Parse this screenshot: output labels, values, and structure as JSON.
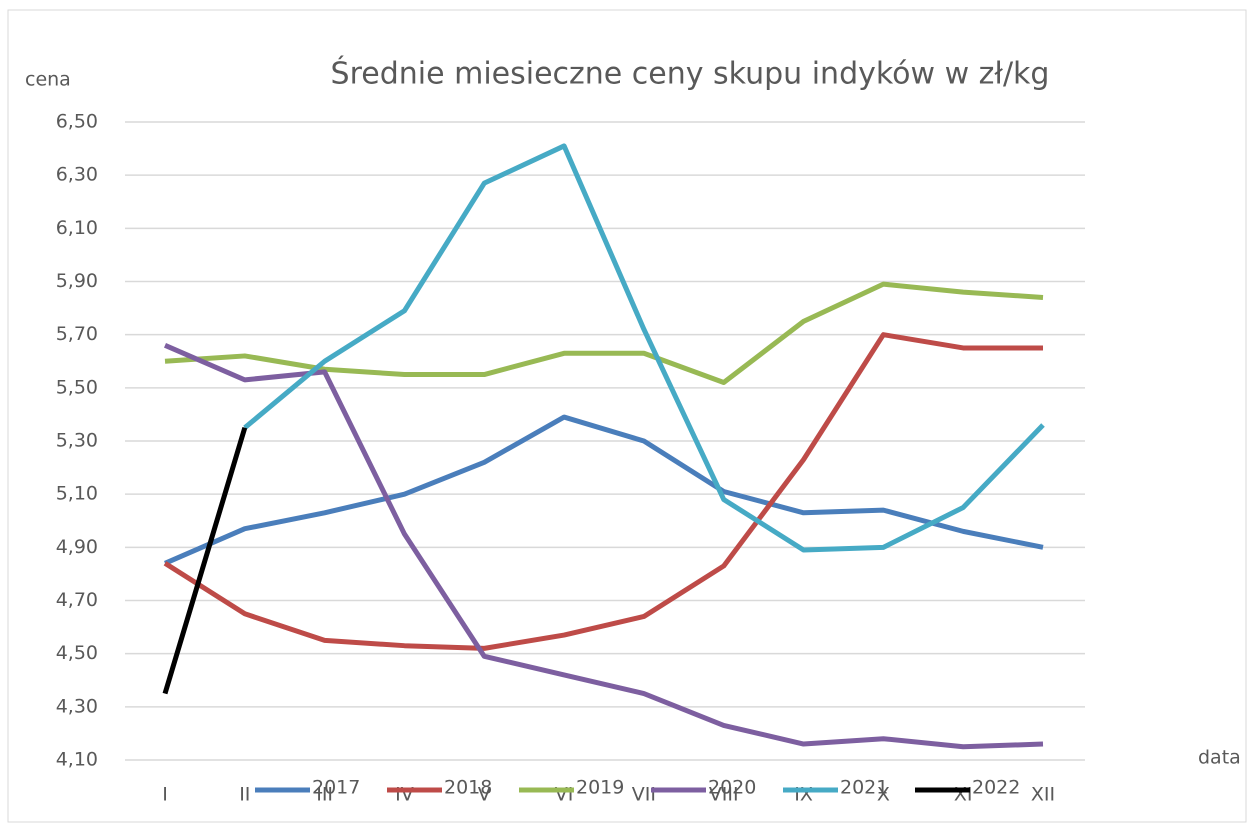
{
  "chart_data": {
    "type": "line",
    "title": "Średnie miesieczne ceny skupu indyków w zł/kg",
    "y_label": "cena",
    "x_label": "data",
    "categories": [
      "I",
      "II",
      "III",
      "IV",
      "V",
      "VI",
      "VII",
      "VIII",
      "IX",
      "X",
      "XI",
      "XII"
    ],
    "series": [
      {
        "name": "2017",
        "color": "#4a7ebb",
        "values": [
          4.84,
          4.97,
          5.03,
          5.1,
          5.22,
          5.39,
          5.3,
          5.11,
          5.03,
          5.04,
          4.96,
          4.9
        ]
      },
      {
        "name": "2018",
        "color": "#be4b48",
        "values": [
          4.84,
          4.65,
          4.55,
          4.53,
          4.52,
          4.57,
          4.64,
          4.83,
          5.23,
          5.7,
          5.65,
          5.65
        ]
      },
      {
        "name": "2019",
        "color": "#98b954",
        "values": [
          5.6,
          5.62,
          5.57,
          5.55,
          5.55,
          5.63,
          5.63,
          5.52,
          5.75,
          5.89,
          5.86,
          5.84
        ]
      },
      {
        "name": "2020",
        "color": "#7d5fa0",
        "values": [
          5.66,
          5.53,
          5.56,
          4.95,
          4.49,
          4.42,
          4.35,
          4.23,
          4.16,
          4.18,
          4.15,
          4.16
        ]
      },
      {
        "name": "2021",
        "color": "#46aac5",
        "values": [
          null,
          5.35,
          5.6,
          5.79,
          6.27,
          6.41,
          5.72,
          5.08,
          4.89,
          4.9,
          5.05,
          5.36
        ]
      },
      {
        "name": "2022",
        "color": "#000000",
        "values": [
          4.35,
          5.35,
          null,
          null,
          null,
          null,
          null,
          null,
          null,
          null,
          null,
          null
        ]
      }
    ],
    "ylim": [
      4.1,
      6.5
    ],
    "yticks": [
      {
        "value": 4.1,
        "label": "4,10"
      },
      {
        "value": 4.3,
        "label": "4,30"
      },
      {
        "value": 4.5,
        "label": "4,50"
      },
      {
        "value": 4.7,
        "label": "4,70"
      },
      {
        "value": 4.9,
        "label": "4,90"
      },
      {
        "value": 5.1,
        "label": "5,10"
      },
      {
        "value": 5.3,
        "label": "5,30"
      },
      {
        "value": 5.5,
        "label": "5,50"
      },
      {
        "value": 5.7,
        "label": "5,70"
      },
      {
        "value": 5.9,
        "label": "5,90"
      },
      {
        "value": 6.1,
        "label": "6,10"
      },
      {
        "value": 6.3,
        "label": "6,30"
      },
      {
        "value": 6.5,
        "label": "6,50"
      }
    ],
    "grid": true
  }
}
